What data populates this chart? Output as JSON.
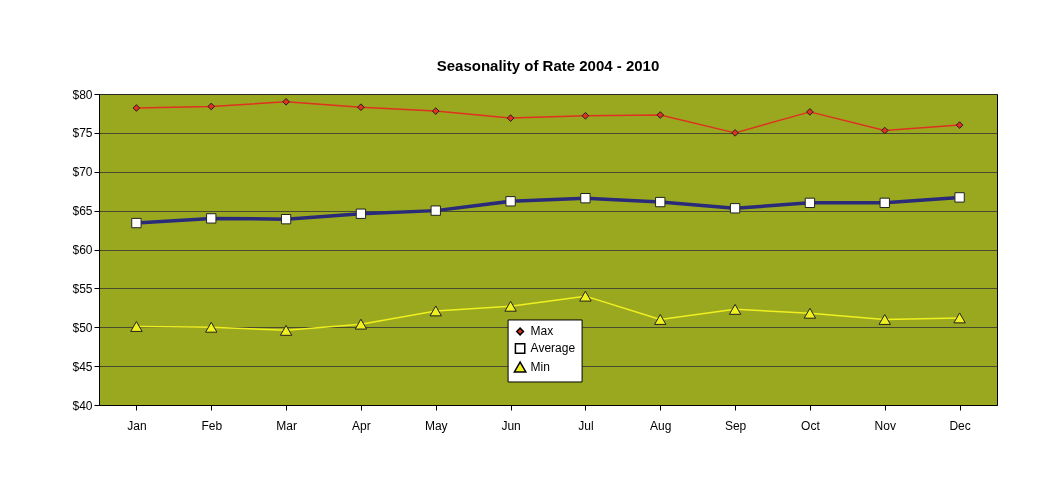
{
  "chart_data": {
    "type": "line",
    "title": "Seasonality of Rate 2004 - 2010",
    "categories": [
      "Jan",
      "Feb",
      "Mar",
      "Apr",
      "May",
      "Jun",
      "Jul",
      "Aug",
      "Sep",
      "Oct",
      "Nov",
      "Dec"
    ],
    "series": [
      {
        "name": "Max",
        "color": "#e03020",
        "marker": "diamond",
        "values": [
          78.2,
          78.4,
          79.0,
          78.3,
          77.8,
          76.9,
          77.2,
          77.3,
          75.0,
          77.7,
          75.3,
          76.0
        ]
      },
      {
        "name": "Average",
        "color": "#2a2a7a",
        "marker": "square",
        "values": [
          63.4,
          64.0,
          63.9,
          64.6,
          65.0,
          66.2,
          66.6,
          66.1,
          65.3,
          66.0,
          66.0,
          66.7
        ]
      },
      {
        "name": "Min",
        "color": "#f0f020",
        "marker": "triangle",
        "values": [
          50.1,
          50.0,
          49.6,
          50.4,
          52.1,
          52.7,
          54.0,
          51.0,
          52.3,
          51.8,
          51.0,
          51.2
        ]
      }
    ],
    "ylim": [
      40,
      80
    ],
    "yticks": [
      {
        "value": 40,
        "label": "$40"
      },
      {
        "value": 45,
        "label": "$45"
      },
      {
        "value": 50,
        "label": "$50"
      },
      {
        "value": 55,
        "label": "$55"
      },
      {
        "value": 60,
        "label": "$60"
      },
      {
        "value": 65,
        "label": "$65"
      },
      {
        "value": 70,
        "label": "$70"
      },
      {
        "value": 75,
        "label": "$75"
      },
      {
        "value": 80,
        "label": "$80"
      }
    ],
    "grid": "y",
    "legend": "bottom",
    "line_style": "solid"
  }
}
